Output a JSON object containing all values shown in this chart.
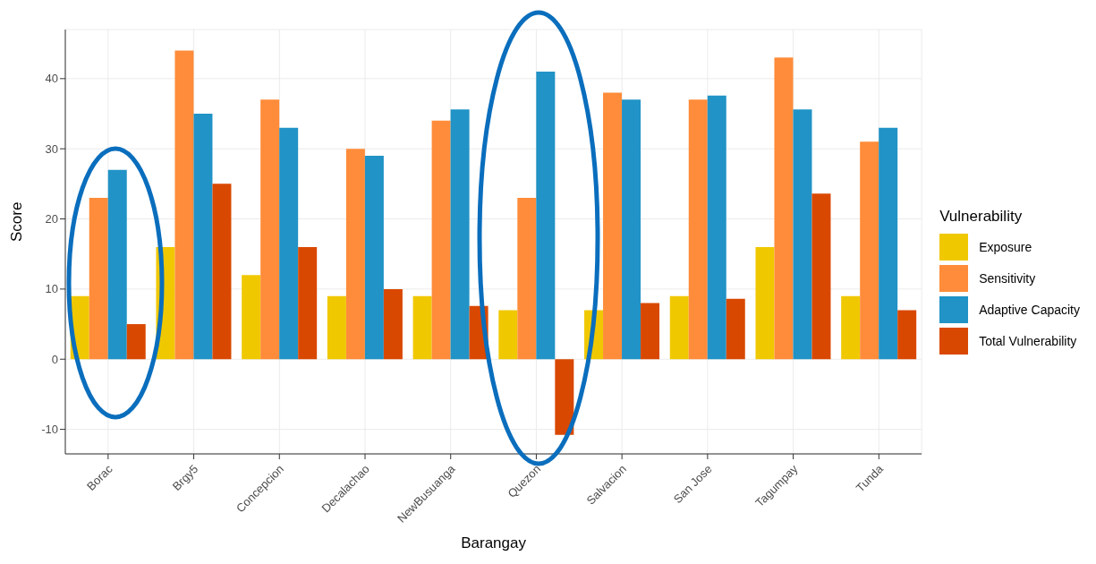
{
  "chart_data": {
    "type": "bar",
    "xlabel": "Barangay",
    "ylabel": "Score",
    "legend_title": "Vulnerability",
    "categories": [
      "Borac",
      "Brgy5",
      "Concepcion",
      "Decalachao",
      "NewBusuanga",
      "Quezon",
      "Salvacion",
      "San Jose",
      "Tagumpay",
      "Tunda"
    ],
    "series": [
      {
        "name": "Exposure",
        "color": "#f0c800",
        "values": [
          9,
          16,
          12,
          9,
          9,
          7,
          7,
          9,
          16,
          9
        ]
      },
      {
        "name": "Sensitivity",
        "color": "#ff8c3a",
        "values": [
          23,
          44,
          37,
          30,
          34,
          23,
          38,
          37,
          43,
          31
        ]
      },
      {
        "name": "Adaptive Capacity",
        "color": "#2193c6",
        "values": [
          27,
          35,
          33,
          29,
          35.6,
          41,
          37,
          37.6,
          35.6,
          33
        ]
      },
      {
        "name": "Total Vulnerability",
        "color": "#d94801",
        "values": [
          5,
          25,
          16,
          10,
          7.6,
          -10.8,
          8,
          8.6,
          23.6,
          7
        ]
      }
    ],
    "ylim": [
      -13.5,
      47
    ],
    "yticks": [
      -10,
      0,
      10,
      20,
      30,
      40
    ],
    "grid": true,
    "legend": "right"
  }
}
